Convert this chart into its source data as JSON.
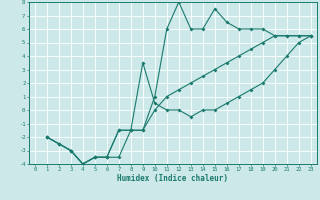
{
  "xlabel": "Humidex (Indice chaleur)",
  "xlim": [
    -0.5,
    23.5
  ],
  "ylim": [
    -4,
    8
  ],
  "xticks": [
    0,
    1,
    2,
    3,
    4,
    5,
    6,
    7,
    8,
    9,
    10,
    11,
    12,
    13,
    14,
    15,
    16,
    17,
    18,
    19,
    20,
    21,
    22,
    23
  ],
  "yticks": [
    -4,
    -3,
    -2,
    -1,
    0,
    1,
    2,
    3,
    4,
    5,
    6,
    7,
    8
  ],
  "bg_color": "#cce8e8",
  "line_color": "#1a7a6e",
  "grid_color": "#ffffff",
  "line1_x": [
    1,
    2,
    3,
    4,
    5,
    6,
    7,
    8,
    9,
    10,
    11,
    12,
    13,
    14,
    15,
    16,
    17,
    18,
    19,
    20,
    21,
    22,
    23
  ],
  "line1_y": [
    -2,
    -2.5,
    -3,
    -4,
    -3.5,
    -3.5,
    -3.5,
    -1.5,
    -1.5,
    1,
    6,
    8,
    6,
    6,
    7.5,
    6.5,
    6,
    6,
    6,
    5.5,
    5.5,
    5.5,
    5.5
  ],
  "line2_x": [
    1,
    2,
    3,
    4,
    5,
    6,
    7,
    8,
    9,
    10,
    11,
    12,
    13,
    14,
    15,
    16,
    17,
    18,
    19,
    20,
    21,
    22,
    23
  ],
  "line2_y": [
    -2,
    -2.5,
    -3,
    -4,
    -3.5,
    -3.5,
    -1.5,
    -1.5,
    3.5,
    0.5,
    0,
    0,
    -0.5,
    0,
    0,
    0.5,
    1,
    1.5,
    2,
    3,
    4,
    5,
    5.5
  ],
  "line3_x": [
    1,
    2,
    3,
    4,
    5,
    6,
    7,
    8,
    9,
    10,
    11,
    12,
    13,
    14,
    15,
    16,
    17,
    18,
    19,
    20,
    21,
    22,
    23
  ],
  "line3_y": [
    -2,
    -2.5,
    -3,
    -4,
    -3.5,
    -3.5,
    -1.5,
    -1.5,
    -1.5,
    0,
    1,
    1.5,
    2,
    2.5,
    3,
    3.5,
    4,
    4.5,
    5,
    5.5,
    5.5,
    5.5,
    5.5
  ]
}
